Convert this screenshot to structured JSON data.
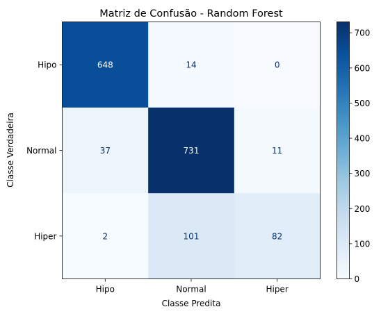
{
  "chart_data": {
    "type": "heatmap",
    "title": "Matriz de Confusão - Random Forest",
    "xlabel": "Classe Predita",
    "ylabel": "Classe Verdadeira",
    "x_categories": [
      "Hipo",
      "Normal",
      "Hiper"
    ],
    "y_categories": [
      "Hipo",
      "Normal",
      "Hiper"
    ],
    "values": [
      [
        648,
        14,
        0
      ],
      [
        37,
        731,
        11
      ],
      [
        2,
        101,
        82
      ]
    ],
    "colormap": "Blues",
    "colorbar": {
      "min": 0,
      "max": 731,
      "ticks": [
        0,
        100,
        200,
        300,
        400,
        500,
        600,
        700
      ]
    },
    "grid": false
  }
}
